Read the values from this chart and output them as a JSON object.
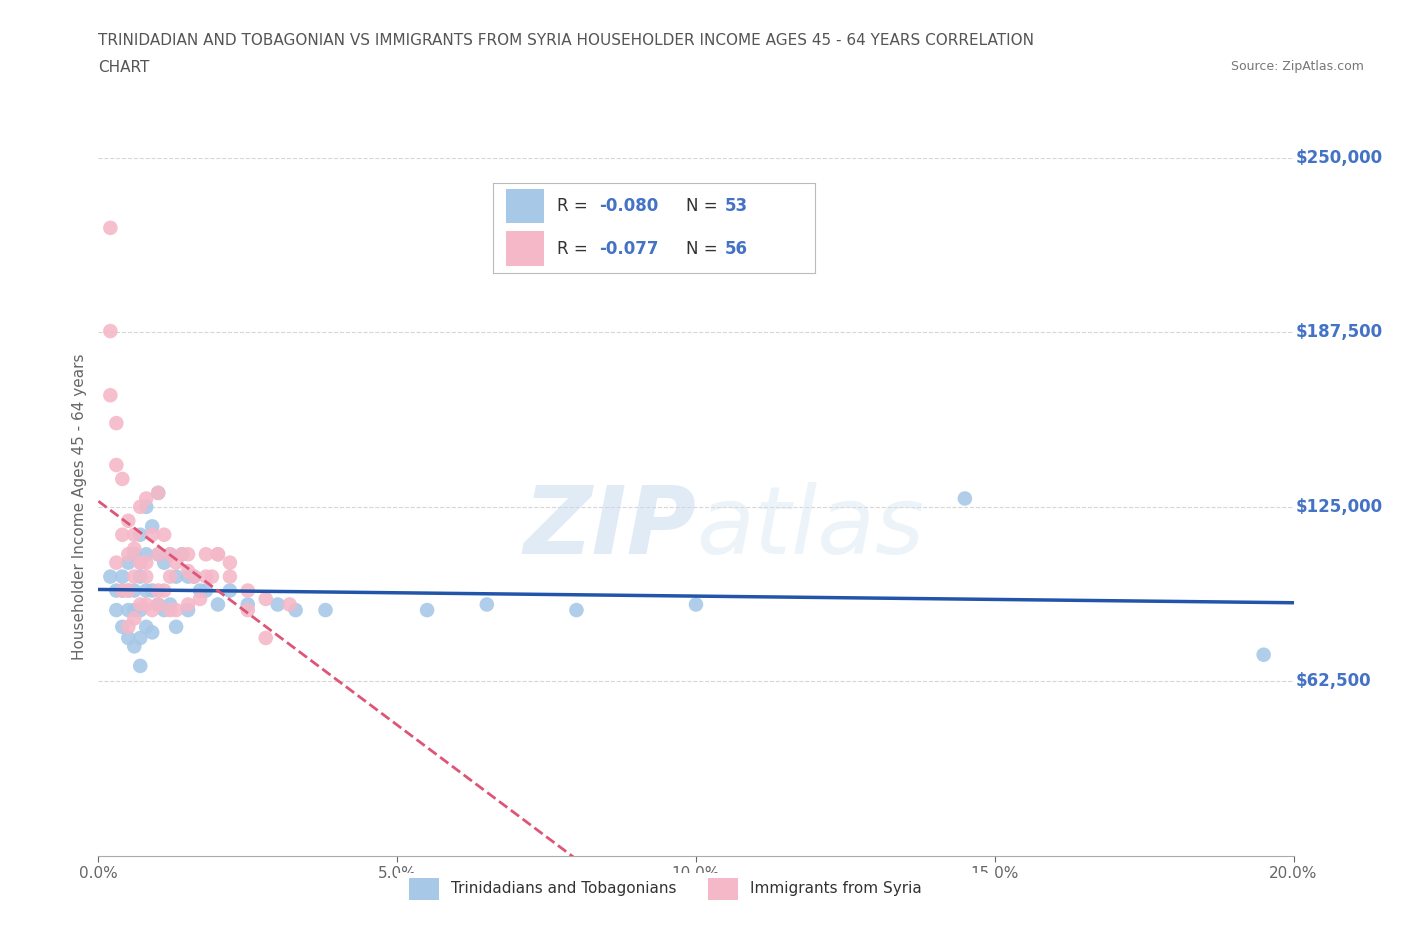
{
  "title_line1": "TRINIDADIAN AND TOBAGONIAN VS IMMIGRANTS FROM SYRIA HOUSEHOLDER INCOME AGES 45 - 64 YEARS CORRELATION",
  "title_line2": "CHART",
  "source": "Source: ZipAtlas.com",
  "ylabel": "Householder Income Ages 45 - 64 years",
  "xmin": 0.0,
  "xmax": 0.2,
  "ymin": 0,
  "ymax": 250000,
  "yticks": [
    62500,
    125000,
    187500,
    250000
  ],
  "ytick_labels": [
    "$62,500",
    "$125,000",
    "$187,500",
    "$250,000"
  ],
  "xticks": [
    0.0,
    0.05,
    0.1,
    0.15,
    0.2
  ],
  "xtick_labels": [
    "0.0%",
    "5.0%",
    "10.0%",
    "15.0%",
    "20.0%"
  ],
  "grid_color": "#cccccc",
  "background_color": "#ffffff",
  "watermark_zip": "ZIP",
  "watermark_atlas": "atlas",
  "color_blue": "#a8c8e8",
  "color_pink": "#f4b8c8",
  "color_blue_line": "#2255aa",
  "color_pink_line": "#dd5577",
  "color_axis_labels": "#4472c4",
  "legend_r1_pre": "R = ",
  "legend_r1_val": "-0.080",
  "legend_n1_pre": "N = ",
  "legend_n1_val": "53",
  "legend_r2_pre": "R = ",
  "legend_r2_val": "-0.077",
  "legend_n2_pre": "N = ",
  "legend_n2_val": "56",
  "legend_bottom_label1": "Trinidadians and Tobagonians",
  "legend_bottom_label2": "Immigrants from Syria",
  "trinidadian_x": [
    0.002,
    0.003,
    0.003,
    0.004,
    0.004,
    0.004,
    0.005,
    0.005,
    0.005,
    0.005,
    0.006,
    0.006,
    0.006,
    0.006,
    0.007,
    0.007,
    0.007,
    0.007,
    0.007,
    0.008,
    0.008,
    0.008,
    0.008,
    0.009,
    0.009,
    0.009,
    0.01,
    0.01,
    0.01,
    0.011,
    0.011,
    0.012,
    0.012,
    0.013,
    0.013,
    0.014,
    0.015,
    0.015,
    0.016,
    0.017,
    0.018,
    0.02,
    0.022,
    0.025,
    0.03,
    0.033,
    0.038,
    0.055,
    0.065,
    0.08,
    0.1,
    0.145,
    0.195
  ],
  "trinidadian_y": [
    100000,
    95000,
    88000,
    95000,
    82000,
    100000,
    105000,
    88000,
    78000,
    95000,
    108000,
    95000,
    88000,
    75000,
    115000,
    100000,
    88000,
    78000,
    68000,
    125000,
    108000,
    95000,
    82000,
    118000,
    95000,
    80000,
    130000,
    108000,
    90000,
    105000,
    88000,
    108000,
    90000,
    100000,
    82000,
    108000,
    100000,
    88000,
    100000,
    95000,
    95000,
    90000,
    95000,
    90000,
    90000,
    88000,
    88000,
    88000,
    90000,
    88000,
    90000,
    128000,
    72000
  ],
  "syria_x": [
    0.002,
    0.002,
    0.003,
    0.003,
    0.004,
    0.004,
    0.005,
    0.005,
    0.005,
    0.006,
    0.006,
    0.006,
    0.007,
    0.007,
    0.007,
    0.008,
    0.008,
    0.008,
    0.009,
    0.009,
    0.01,
    0.01,
    0.01,
    0.011,
    0.011,
    0.012,
    0.012,
    0.013,
    0.013,
    0.014,
    0.015,
    0.015,
    0.016,
    0.017,
    0.018,
    0.019,
    0.02,
    0.022,
    0.025,
    0.028,
    0.002,
    0.003,
    0.004,
    0.005,
    0.006,
    0.007,
    0.008,
    0.01,
    0.012,
    0.015,
    0.018,
    0.02,
    0.022,
    0.025,
    0.028,
    0.032
  ],
  "syria_y": [
    225000,
    165000,
    140000,
    105000,
    115000,
    95000,
    108000,
    95000,
    82000,
    115000,
    100000,
    85000,
    125000,
    105000,
    90000,
    128000,
    105000,
    90000,
    115000,
    88000,
    130000,
    108000,
    90000,
    115000,
    95000,
    108000,
    88000,
    105000,
    88000,
    108000,
    108000,
    90000,
    100000,
    92000,
    108000,
    100000,
    108000,
    105000,
    95000,
    92000,
    188000,
    155000,
    135000,
    120000,
    110000,
    105000,
    100000,
    95000,
    100000,
    102000,
    100000,
    108000,
    100000,
    88000,
    78000,
    90000
  ]
}
